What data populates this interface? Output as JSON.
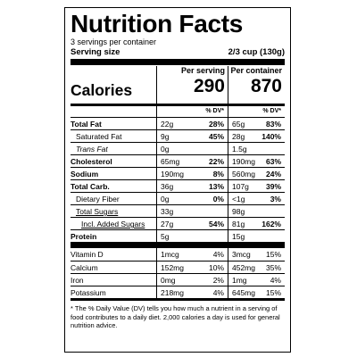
{
  "label": {
    "title": "Nutrition Facts",
    "servings": "3 servings per container",
    "serving_size_label": "Serving size",
    "serving_size_value": "2/3 cup (130g)",
    "per_serving_label": "Per serving",
    "per_container_label": "Per container",
    "calories_label": "Calories",
    "calories_per_serving": "290",
    "calories_per_container": "870",
    "dv_header": "% DV*"
  },
  "rows": {
    "total_fat": {
      "name": "Total Fat",
      "a_amt": "22g",
      "a_dv": "28%",
      "b_amt": "65g",
      "b_dv": "83%"
    },
    "sat_fat": {
      "name": "Saturated Fat",
      "a_amt": "9g",
      "a_dv": "45%",
      "b_amt": "28g",
      "b_dv": "140%"
    },
    "trans_fat": {
      "name": "Trans Fat",
      "a_amt": "0g",
      "a_dv": "",
      "b_amt": "1.5g",
      "b_dv": ""
    },
    "cholesterol": {
      "name": "Cholesterol",
      "a_amt": "65mg",
      "a_dv": "22%",
      "b_amt": "190mg",
      "b_dv": "63%"
    },
    "sodium": {
      "name": "Sodium",
      "a_amt": "190mg",
      "a_dv": "8%",
      "b_amt": "560mg",
      "b_dv": "24%"
    },
    "total_carb": {
      "name": "Total Carb.",
      "a_amt": "36g",
      "a_dv": "13%",
      "b_amt": "107g",
      "b_dv": "39%"
    },
    "fiber": {
      "name": "Dietary Fiber",
      "a_amt": "0g",
      "a_dv": "0%",
      "b_amt": "<1g",
      "b_dv": "3%"
    },
    "sugars": {
      "name": "Total Sugars",
      "a_amt": "33g",
      "a_dv": "",
      "b_amt": "98g",
      "b_dv": ""
    },
    "added_sugars": {
      "name": "Incl. Added Sugars",
      "a_amt": "27g",
      "a_dv": "54%",
      "b_amt": "81g",
      "b_dv": "162%"
    },
    "protein": {
      "name": "Protein",
      "a_amt": "5g",
      "a_dv": "",
      "b_amt": "15g",
      "b_dv": ""
    },
    "vitamin_d": {
      "name": "Vitamin D",
      "a_amt": "1mcg",
      "a_dv": "4%",
      "b_amt": "3mcg",
      "b_dv": "15%"
    },
    "calcium": {
      "name": "Calcium",
      "a_amt": "152mg",
      "a_dv": "10%",
      "b_amt": "452mg",
      "b_dv": "35%"
    },
    "iron": {
      "name": "Iron",
      "a_amt": "0mg",
      "a_dv": "2%",
      "b_amt": "1mg",
      "b_dv": "4%"
    },
    "potassium": {
      "name": "Potassium",
      "a_amt": "218mg",
      "a_dv": "4%",
      "b_amt": "645mg",
      "b_dv": "15%"
    }
  },
  "footnote": "* The % Daily Value (DV) tells you how much a nutrient in a serving of food contributes to a daily diet. 2,000 calories a day is used for general nutrition advice."
}
